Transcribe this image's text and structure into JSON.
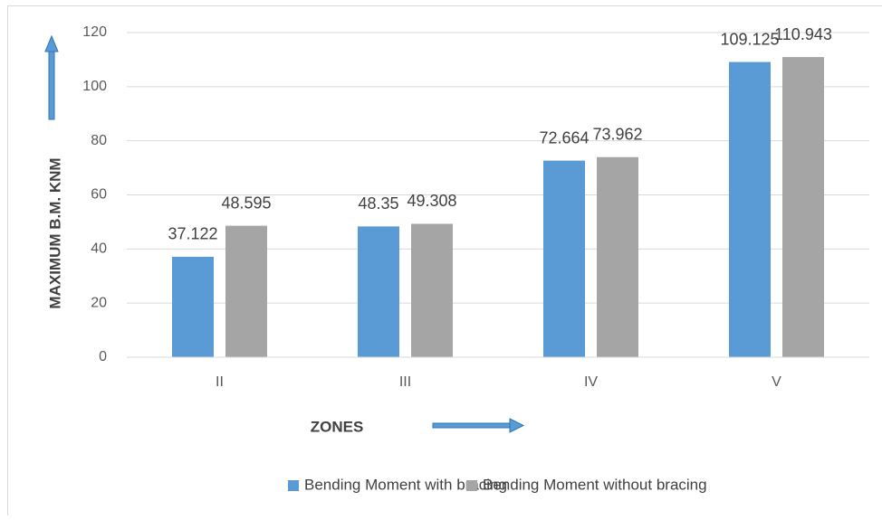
{
  "chart_data": {
    "type": "bar",
    "y_label": "MAXIMUM B.M. KNM",
    "x_label": "ZONES",
    "categories": [
      "II",
      "III",
      "IV",
      "V"
    ],
    "series": [
      {
        "name": "Bending Moment with bracing",
        "color": "#5b9bd5",
        "values": [
          37.122,
          48.35,
          72.664,
          109.125
        ]
      },
      {
        "name": "Bending Moment without bracing",
        "color": "#a5a5a5",
        "values": [
          48.595,
          49.308,
          73.962,
          110.943
        ]
      }
    ],
    "ylim": [
      0,
      120
    ],
    "yticks": [
      0,
      20,
      40,
      60,
      80,
      100,
      120
    ],
    "grid": true,
    "legend": "bottom"
  }
}
